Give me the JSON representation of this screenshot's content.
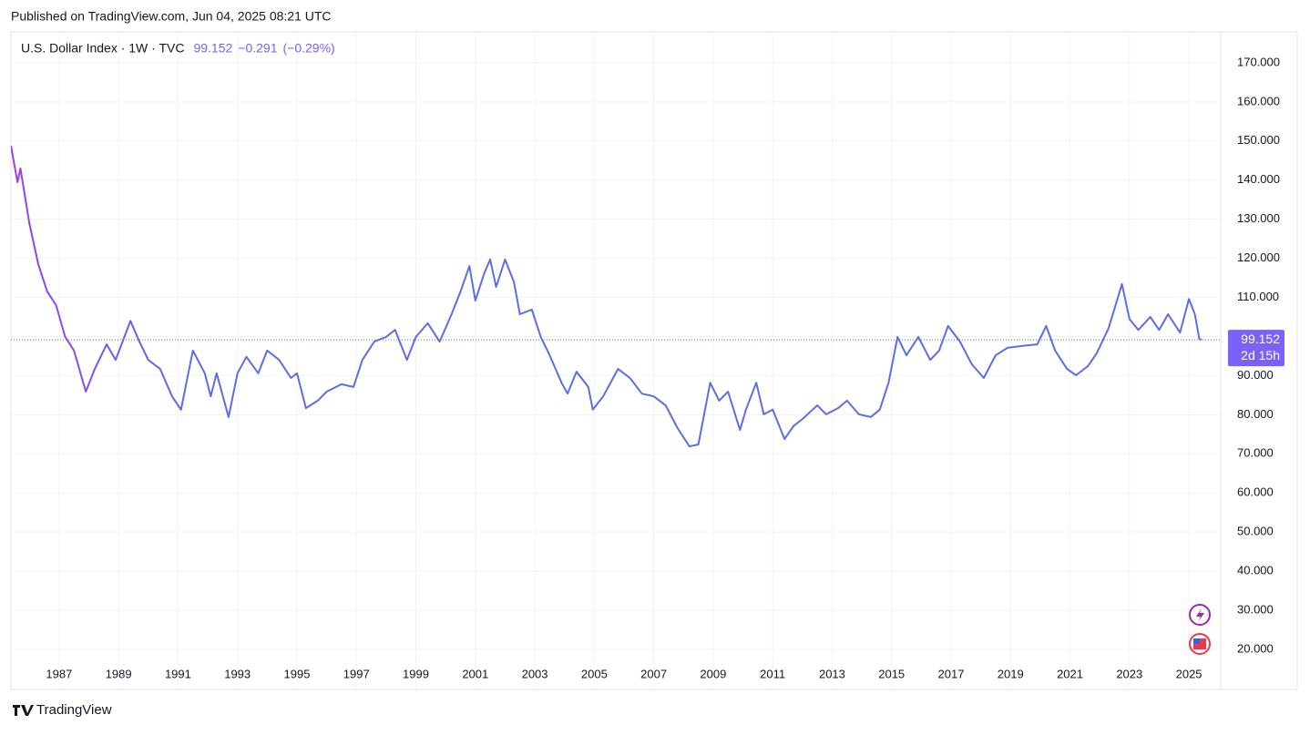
{
  "header": {
    "published": "Published on TradingView.com, Jun 04, 2025 08:21 UTC"
  },
  "footer": {
    "brand": "TradingView"
  },
  "chart_data": {
    "type": "line",
    "title": "U.S. Dollar Index · 1W · TVC",
    "last_value": 99.152,
    "change": "−0.291",
    "change_pct": "(−0.29%)",
    "countdown": "2d 15h",
    "xlim": [
      1985.38,
      2026.07
    ],
    "xticks": [
      1987,
      1989,
      1991,
      1993,
      1995,
      1997,
      1999,
      2001,
      2003,
      2005,
      2007,
      2009,
      2011,
      2013,
      2015,
      2017,
      2019,
      2021,
      2023,
      2025
    ],
    "ylim": [
      9.75,
      177.9
    ],
    "yticks": [
      {
        "value": 20,
        "label": "20.000"
      },
      {
        "value": 30,
        "label": "30.000"
      },
      {
        "value": 40,
        "label": "40.000"
      },
      {
        "value": 50,
        "label": "50.000"
      },
      {
        "value": 60,
        "label": "60.000"
      },
      {
        "value": 70,
        "label": "70.000"
      },
      {
        "value": 80,
        "label": "80.000"
      },
      {
        "value": 90,
        "label": "90.000"
      },
      {
        "value": 100,
        "label": "100.000"
      },
      {
        "value": 110,
        "label": "110.000"
      },
      {
        "value": 120,
        "label": "120.000"
      },
      {
        "value": 130,
        "label": "130.000"
      },
      {
        "value": 140,
        "label": "140.000"
      },
      {
        "value": 150,
        "label": "150.000"
      },
      {
        "value": 160,
        "label": "160.000"
      },
      {
        "value": 170,
        "label": "170.000"
      }
    ],
    "grid": true,
    "series": [
      {
        "color": "#5b6ee3",
        "gradient_start": "#9c3cf0",
        "x": [
          1985.38,
          1985.6,
          1985.7,
          1986.0,
          1986.3,
          1986.6,
          1986.9,
          1987.2,
          1987.5,
          1987.9,
          1988.2,
          1988.6,
          1988.9,
          1989.4,
          1989.7,
          1990.0,
          1990.4,
          1990.8,
          1991.1,
          1991.5,
          1991.9,
          1992.1,
          1992.3,
          1992.7,
          1993.0,
          1993.3,
          1993.7,
          1994.0,
          1994.4,
          1994.8,
          1995.0,
          1995.3,
          1995.7,
          1996.0,
          1996.5,
          1996.9,
          1997.2,
          1997.6,
          1998.0,
          1998.3,
          1998.7,
          1999.0,
          1999.4,
          1999.8,
          2000.2,
          2000.5,
          2000.8,
          2001.0,
          2001.3,
          2001.5,
          2001.7,
          2002.0,
          2002.3,
          2002.5,
          2002.9,
          2003.2,
          2003.5,
          2003.9,
          2004.1,
          2004.4,
          2004.8,
          2004.95,
          2005.3,
          2005.8,
          2006.2,
          2006.6,
          2007.0,
          2007.4,
          2007.8,
          2008.2,
          2008.5,
          2008.9,
          2009.2,
          2009.5,
          2009.9,
          2010.1,
          2010.45,
          2010.7,
          2011.0,
          2011.4,
          2011.7,
          2012.0,
          2012.5,
          2012.8,
          2013.2,
          2013.5,
          2013.9,
          2014.3,
          2014.6,
          2014.9,
          2015.2,
          2015.5,
          2015.9,
          2016.3,
          2016.6,
          2016.9,
          2017.3,
          2017.7,
          2018.1,
          2018.5,
          2018.9,
          2019.4,
          2019.9,
          2020.2,
          2020.5,
          2020.9,
          2021.2,
          2021.6,
          2021.9,
          2022.3,
          2022.75,
          2023.0,
          2023.3,
          2023.7,
          2024.0,
          2024.3,
          2024.7,
          2025.0,
          2025.2,
          2025.35,
          2025.43
        ],
        "values": [
          148.8,
          139.5,
          143,
          129,
          118.5,
          111.5,
          108,
          100,
          96.4,
          85.9,
          91.7,
          98,
          94,
          104,
          98.7,
          94,
          91.7,
          84.7,
          81.3,
          96.4,
          90.6,
          84.7,
          90.6,
          79.4,
          90.6,
          94.8,
          90.6,
          96.4,
          94,
          89.4,
          90.6,
          81.7,
          83.6,
          85.9,
          87.8,
          87.1,
          94,
          98.7,
          99.9,
          101.7,
          94,
          99.9,
          103.4,
          98.7,
          105.7,
          111.5,
          118,
          109.2,
          116.2,
          119.7,
          112.7,
          119.7,
          113.9,
          105.7,
          106.9,
          99.9,
          95.2,
          88.2,
          85.4,
          91,
          87.1,
          81.3,
          84.7,
          91.7,
          89.4,
          85.4,
          84.7,
          82.4,
          76.6,
          71.9,
          72.4,
          88.2,
          83.6,
          85.9,
          76.1,
          81.3,
          88.2,
          80.1,
          81.3,
          73.8,
          77.1,
          78.9,
          82.4,
          80.1,
          81.7,
          83.6,
          80.1,
          79.4,
          81.3,
          88.2,
          99.9,
          95.2,
          99.9,
          94,
          96.4,
          102.7,
          98.7,
          92.9,
          89.4,
          95.2,
          97.1,
          97.6,
          98,
          102.7,
          96.4,
          91.7,
          90.1,
          92.4,
          95.7,
          102.2,
          113.4,
          104.5,
          101.7,
          105,
          101.7,
          105.7,
          101,
          109.6,
          105.7,
          99.4,
          99.152
        ]
      }
    ]
  }
}
